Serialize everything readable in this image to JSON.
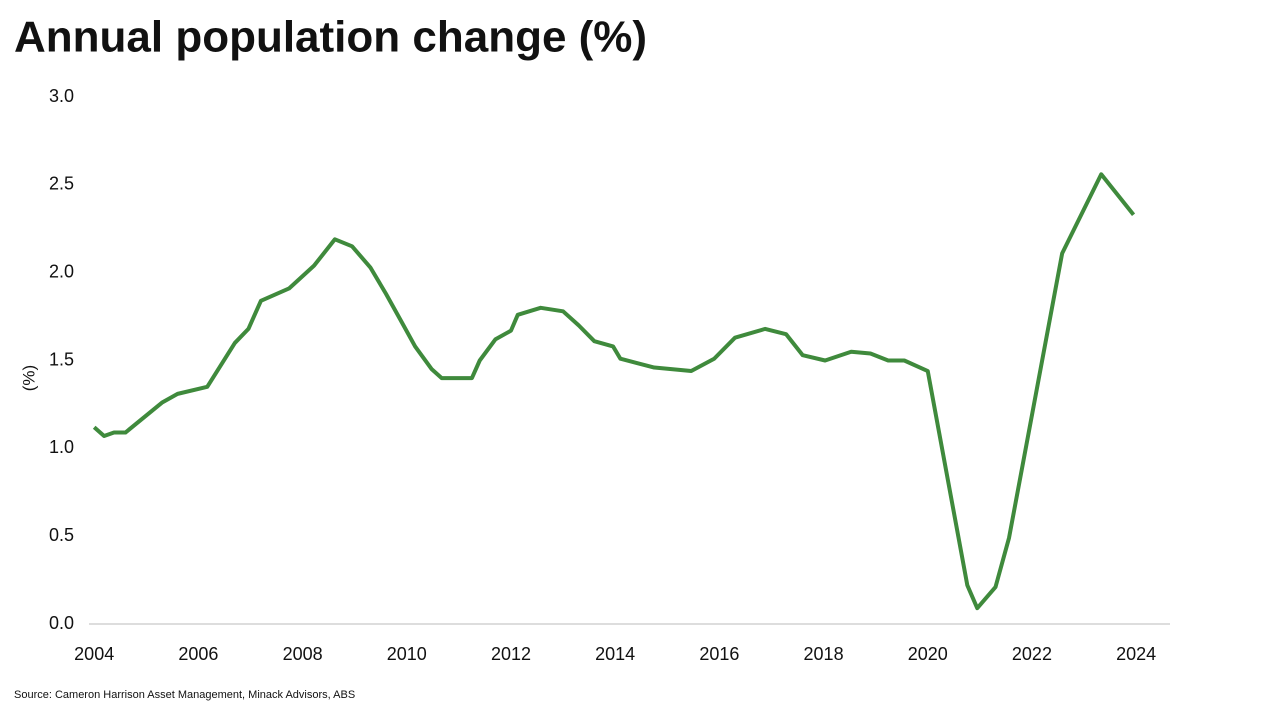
{
  "chart_data": {
    "type": "line",
    "title": "Annual population change (%)",
    "y_label": "(%)",
    "source": "Source: Cameron Harrison Asset Management, Minack Advisors, ABS",
    "x": [
      2004.0,
      2004.19,
      2004.38,
      2004.6,
      2005.3,
      2005.6,
      2006.17,
      2006.7,
      2006.96,
      2007.2,
      2007.74,
      2008.22,
      2008.62,
      2008.95,
      2009.3,
      2009.6,
      2009.9,
      2010.16,
      2010.48,
      2010.67,
      2011.25,
      2011.4,
      2011.7,
      2012.0,
      2012.13,
      2012.57,
      2013.0,
      2013.3,
      2013.6,
      2013.96,
      2014.1,
      2014.75,
      2015.46,
      2015.9,
      2016.3,
      2016.88,
      2017.28,
      2017.6,
      2018.03,
      2018.53,
      2018.9,
      2019.24,
      2019.55,
      2020.0,
      2020.76,
      2020.95,
      2021.3,
      2021.56,
      2022.58,
      2023.33,
      2023.95
    ],
    "series": [
      {
        "name": "Annual population change",
        "color": "#3f8a3c",
        "values": [
          1.12,
          1.07,
          1.09,
          1.09,
          1.26,
          1.31,
          1.35,
          1.6,
          1.68,
          1.84,
          1.91,
          2.04,
          2.19,
          2.15,
          2.03,
          1.88,
          1.72,
          1.58,
          1.45,
          1.4,
          1.4,
          1.5,
          1.62,
          1.67,
          1.76,
          1.8,
          1.78,
          1.7,
          1.61,
          1.58,
          1.51,
          1.46,
          1.44,
          1.51,
          1.63,
          1.68,
          1.65,
          1.53,
          1.5,
          1.55,
          1.54,
          1.5,
          1.5,
          1.44,
          0.22,
          0.09,
          0.21,
          0.49,
          2.11,
          2.56,
          2.33
        ]
      }
    ],
    "xlim": [
      2003.9,
      2024.65
    ],
    "xticks": [
      2004,
      2006,
      2008,
      2010,
      2012,
      2014,
      2016,
      2018,
      2020,
      2022,
      2024
    ],
    "ylim": [
      0,
      3
    ],
    "yticks": [
      {
        "value": 0,
        "label": "0.0"
      },
      0.5,
      {
        "value": 1,
        "label": "1.0"
      },
      1.5,
      {
        "value": 2,
        "label": "2.0"
      },
      2.5,
      {
        "value": 3,
        "label": "3.0"
      }
    ],
    "grid": false
  }
}
